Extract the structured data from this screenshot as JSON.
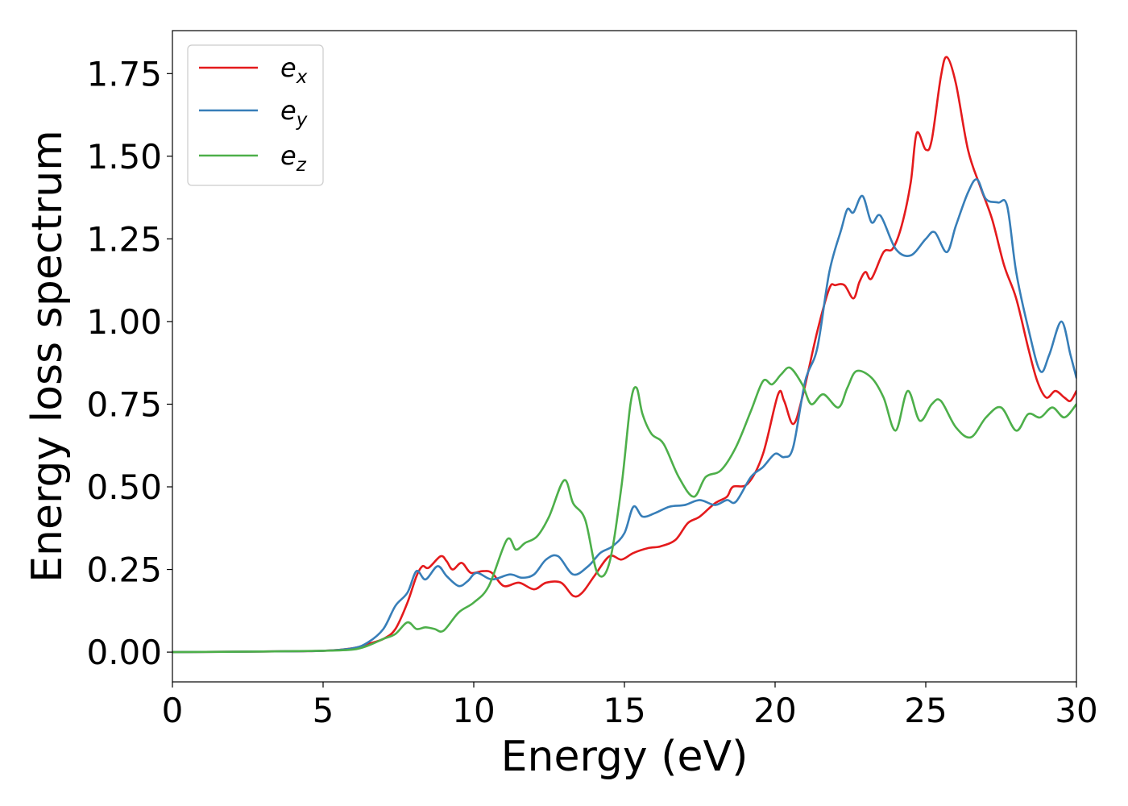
{
  "chart_data": {
    "type": "line",
    "title": "",
    "xlabel": "Energy (eV)",
    "ylabel": "Energy loss spectrum",
    "xlim": [
      0,
      30
    ],
    "ylim": [
      -0.09,
      1.88
    ],
    "xticks": [
      0,
      5,
      10,
      15,
      20,
      25,
      30
    ],
    "xtick_labels": [
      "0",
      "5",
      "10",
      "15",
      "20",
      "25",
      "30"
    ],
    "yticks": [
      0,
      0.25,
      0.5,
      0.75,
      1.0,
      1.25,
      1.5,
      1.75
    ],
    "ytick_labels": [
      "0.00",
      "0.25",
      "0.50",
      "0.75",
      "1.00",
      "1.25",
      "1.50",
      "1.75"
    ],
    "grid": false,
    "legend_position": "top-left",
    "series": [
      {
        "name": "e",
        "subscript": "x",
        "color": "#e41a1c",
        "points": [
          [
            0,
            0
          ],
          [
            3,
            0.002
          ],
          [
            5,
            0.004
          ],
          [
            6,
            0.012
          ],
          [
            6.5,
            0.025
          ],
          [
            7,
            0.04
          ],
          [
            7.4,
            0.07
          ],
          [
            7.8,
            0.15
          ],
          [
            8.1,
            0.23
          ],
          [
            8.3,
            0.26
          ],
          [
            8.5,
            0.255
          ],
          [
            8.9,
            0.29
          ],
          [
            9.1,
            0.275
          ],
          [
            9.3,
            0.25
          ],
          [
            9.6,
            0.27
          ],
          [
            9.9,
            0.24
          ],
          [
            10.3,
            0.245
          ],
          [
            10.6,
            0.24
          ],
          [
            11,
            0.2
          ],
          [
            11.5,
            0.21
          ],
          [
            12,
            0.19
          ],
          [
            12.4,
            0.21
          ],
          [
            12.9,
            0.21
          ],
          [
            13.3,
            0.17
          ],
          [
            13.6,
            0.18
          ],
          [
            14,
            0.23
          ],
          [
            14.5,
            0.29
          ],
          [
            14.9,
            0.28
          ],
          [
            15.3,
            0.3
          ],
          [
            15.8,
            0.315
          ],
          [
            16.2,
            0.32
          ],
          [
            16.7,
            0.34
          ],
          [
            17.1,
            0.39
          ],
          [
            17.5,
            0.41
          ],
          [
            18,
            0.45
          ],
          [
            18.4,
            0.47
          ],
          [
            18.6,
            0.5
          ],
          [
            19.1,
            0.51
          ],
          [
            19.6,
            0.6
          ],
          [
            20.1,
            0.78
          ],
          [
            20.3,
            0.76
          ],
          [
            20.6,
            0.69
          ],
          [
            20.9,
            0.77
          ],
          [
            21.4,
            0.97
          ],
          [
            21.8,
            1.1
          ],
          [
            22,
            1.11
          ],
          [
            22.3,
            1.11
          ],
          [
            22.6,
            1.07
          ],
          [
            22.8,
            1.12
          ],
          [
            23,
            1.15
          ],
          [
            23.2,
            1.13
          ],
          [
            23.6,
            1.21
          ],
          [
            23.9,
            1.22
          ],
          [
            24.2,
            1.29
          ],
          [
            24.5,
            1.42
          ],
          [
            24.7,
            1.57
          ],
          [
            25,
            1.52
          ],
          [
            25.2,
            1.55
          ],
          [
            25.5,
            1.74
          ],
          [
            25.7,
            1.8
          ],
          [
            26,
            1.72
          ],
          [
            26.4,
            1.52
          ],
          [
            26.8,
            1.41
          ],
          [
            27.2,
            1.31
          ],
          [
            27.6,
            1.17
          ],
          [
            28,
            1.07
          ],
          [
            28.4,
            0.92
          ],
          [
            28.7,
            0.82
          ],
          [
            29,
            0.77
          ],
          [
            29.3,
            0.79
          ],
          [
            29.6,
            0.77
          ],
          [
            29.8,
            0.76
          ],
          [
            30,
            0.79
          ]
        ]
      },
      {
        "name": "e",
        "subscript": "y",
        "color": "#377eb8",
        "points": [
          [
            0,
            0
          ],
          [
            3,
            0.002
          ],
          [
            5,
            0.004
          ],
          [
            6,
            0.012
          ],
          [
            6.5,
            0.03
          ],
          [
            7,
            0.07
          ],
          [
            7.4,
            0.14
          ],
          [
            7.8,
            0.18
          ],
          [
            8.1,
            0.245
          ],
          [
            8.4,
            0.22
          ],
          [
            8.8,
            0.26
          ],
          [
            9.1,
            0.23
          ],
          [
            9.5,
            0.2
          ],
          [
            9.8,
            0.215
          ],
          [
            10.1,
            0.24
          ],
          [
            10.6,
            0.22
          ],
          [
            11.2,
            0.235
          ],
          [
            11.6,
            0.225
          ],
          [
            12,
            0.235
          ],
          [
            12.4,
            0.28
          ],
          [
            12.8,
            0.29
          ],
          [
            13.3,
            0.235
          ],
          [
            13.8,
            0.26
          ],
          [
            14.2,
            0.3
          ],
          [
            14.6,
            0.32
          ],
          [
            15,
            0.36
          ],
          [
            15.3,
            0.44
          ],
          [
            15.6,
            0.41
          ],
          [
            16,
            0.42
          ],
          [
            16.5,
            0.44
          ],
          [
            17,
            0.445
          ],
          [
            17.5,
            0.46
          ],
          [
            18,
            0.445
          ],
          [
            18.4,
            0.46
          ],
          [
            18.7,
            0.455
          ],
          [
            19.2,
            0.53
          ],
          [
            19.6,
            0.56
          ],
          [
            20,
            0.6
          ],
          [
            20.3,
            0.59
          ],
          [
            20.6,
            0.62
          ],
          [
            21,
            0.82
          ],
          [
            21.4,
            0.92
          ],
          [
            21.8,
            1.15
          ],
          [
            22.2,
            1.28
          ],
          [
            22.4,
            1.34
          ],
          [
            22.6,
            1.33
          ],
          [
            22.9,
            1.38
          ],
          [
            23.2,
            1.3
          ],
          [
            23.5,
            1.32
          ],
          [
            24,
            1.22
          ],
          [
            24.5,
            1.2
          ],
          [
            25,
            1.25
          ],
          [
            25.3,
            1.27
          ],
          [
            25.7,
            1.21
          ],
          [
            26,
            1.29
          ],
          [
            26.4,
            1.39
          ],
          [
            26.7,
            1.43
          ],
          [
            27,
            1.37
          ],
          [
            27.4,
            1.36
          ],
          [
            27.7,
            1.35
          ],
          [
            28,
            1.15
          ],
          [
            28.4,
            0.98
          ],
          [
            28.8,
            0.85
          ],
          [
            29.1,
            0.9
          ],
          [
            29.5,
            1.0
          ],
          [
            29.8,
            0.9
          ],
          [
            30,
            0.83
          ]
        ]
      },
      {
        "name": "e",
        "subscript": "z",
        "color": "#4daf4a",
        "points": [
          [
            0,
            0
          ],
          [
            3,
            0.002
          ],
          [
            5,
            0.004
          ],
          [
            6,
            0.008
          ],
          [
            6.5,
            0.02
          ],
          [
            7,
            0.04
          ],
          [
            7.4,
            0.055
          ],
          [
            7.8,
            0.09
          ],
          [
            8.1,
            0.07
          ],
          [
            8.4,
            0.075
          ],
          [
            8.7,
            0.07
          ],
          [
            9,
            0.065
          ],
          [
            9.5,
            0.12
          ],
          [
            10,
            0.15
          ],
          [
            10.5,
            0.2
          ],
          [
            11.1,
            0.34
          ],
          [
            11.4,
            0.31
          ],
          [
            11.7,
            0.33
          ],
          [
            12.1,
            0.35
          ],
          [
            12.5,
            0.41
          ],
          [
            13,
            0.52
          ],
          [
            13.3,
            0.45
          ],
          [
            13.7,
            0.4
          ],
          [
            14.1,
            0.24
          ],
          [
            14.5,
            0.27
          ],
          [
            14.9,
            0.5
          ],
          [
            15.2,
            0.75
          ],
          [
            15.4,
            0.8
          ],
          [
            15.6,
            0.72
          ],
          [
            15.9,
            0.66
          ],
          [
            16.3,
            0.63
          ],
          [
            16.8,
            0.53
          ],
          [
            17.3,
            0.47
          ],
          [
            17.7,
            0.53
          ],
          [
            18.2,
            0.55
          ],
          [
            18.7,
            0.62
          ],
          [
            19.2,
            0.73
          ],
          [
            19.6,
            0.82
          ],
          [
            19.9,
            0.81
          ],
          [
            20.2,
            0.84
          ],
          [
            20.5,
            0.86
          ],
          [
            20.9,
            0.81
          ],
          [
            21.2,
            0.75
          ],
          [
            21.6,
            0.78
          ],
          [
            22.1,
            0.74
          ],
          [
            22.4,
            0.8
          ],
          [
            22.7,
            0.85
          ],
          [
            23.2,
            0.83
          ],
          [
            23.6,
            0.77
          ],
          [
            24,
            0.67
          ],
          [
            24.4,
            0.79
          ],
          [
            24.8,
            0.7
          ],
          [
            25.2,
            0.75
          ],
          [
            25.5,
            0.76
          ],
          [
            26,
            0.68
          ],
          [
            26.5,
            0.65
          ],
          [
            27,
            0.71
          ],
          [
            27.5,
            0.74
          ],
          [
            28,
            0.67
          ],
          [
            28.4,
            0.72
          ],
          [
            28.8,
            0.71
          ],
          [
            29.2,
            0.74
          ],
          [
            29.6,
            0.71
          ],
          [
            30,
            0.75
          ]
        ]
      }
    ]
  }
}
